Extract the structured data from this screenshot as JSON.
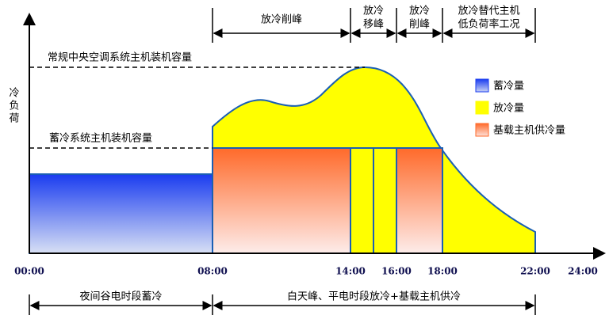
{
  "y_axis_label": [
    "冷",
    "负",
    "荷"
  ],
  "time_labels": [
    "00:00",
    "08:00",
    "14:00",
    "16:00",
    "18:00",
    "22:00",
    "24:00"
  ],
  "capacity_labels": {
    "conventional": "常规中央空调系统主机装机容量",
    "storage": "蓄冷系统主机装机容量"
  },
  "top_brackets": [
    {
      "lines": [
        "放冷削峰"
      ]
    },
    {
      "lines": [
        "放冷",
        "移峰"
      ]
    },
    {
      "lines": [
        "放冷",
        "削峰"
      ]
    },
    {
      "lines": [
        "放冷替代主机",
        "低负荷率工况"
      ]
    }
  ],
  "bottom_brackets": [
    {
      "label": "夜间谷电时段蓄冷"
    },
    {
      "label": "白天峰、平电时段放冷+基载主机供冷"
    }
  ],
  "legend": [
    {
      "label": "蓄冷量",
      "color": "#1a3cf0"
    },
    {
      "label": "放冷量",
      "color": "#ffff00"
    },
    {
      "label": "基载主机供冷量",
      "color": "#ff6a2a"
    }
  ]
}
